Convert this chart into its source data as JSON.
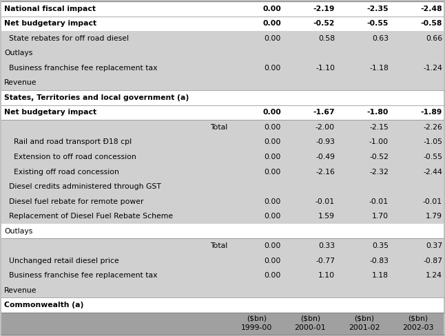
{
  "fig_bg": "#c0c0c0",
  "table_bg": "#ffffff",
  "light_gray": "#d0d0d0",
  "header_gray": "#a0a0a0",
  "font_size": 7.8,
  "rows": [
    {
      "text": "Commonwealth (a)",
      "indent": 0,
      "type": "section_header",
      "values": [
        null,
        null,
        null,
        null
      ],
      "bold": true,
      "bg": "white"
    },
    {
      "text": "Revenue",
      "indent": 0,
      "type": "subsection_header",
      "values": [
        null,
        null,
        null,
        null
      ],
      "bold": false,
      "bg": "light_gray"
    },
    {
      "text": "  Business franchise fee replacement tax",
      "indent": 0,
      "type": "data",
      "values": [
        "0.00",
        "1.10",
        "1.18",
        "1.24"
      ],
      "bold": false,
      "bg": "light_gray"
    },
    {
      "text": "  Unchanged retail diesel price",
      "indent": 0,
      "type": "data",
      "values": [
        "0.00",
        "-0.77",
        "-0.83",
        "-0.87"
      ],
      "bold": false,
      "bg": "light_gray"
    },
    {
      "text": "Total",
      "indent": 0,
      "type": "total",
      "values": [
        "0.00",
        "0.33",
        "0.35",
        "0.37"
      ],
      "bold": false,
      "bg": "light_gray"
    },
    {
      "text": "Outlays",
      "indent": 0,
      "type": "subsection_header",
      "values": [
        null,
        null,
        null,
        null
      ],
      "bold": false,
      "bg": "white"
    },
    {
      "text": "  Replacement of Diesel Fuel Rebate Scheme",
      "indent": 0,
      "type": "data",
      "values": [
        "0.00",
        "1.59",
        "1.70",
        "1.79"
      ],
      "bold": false,
      "bg": "light_gray"
    },
    {
      "text": "  Diesel fuel rebate for remote power",
      "indent": 0,
      "type": "data",
      "values": [
        "0.00",
        "-0.01",
        "-0.01",
        "-0.01"
      ],
      "bold": false,
      "bg": "light_gray"
    },
    {
      "text": "  Diesel credits administered through GST",
      "indent": 0,
      "type": "data",
      "values": [
        null,
        null,
        null,
        null
      ],
      "bold": false,
      "bg": "light_gray"
    },
    {
      "text": "    Existing off road concession",
      "indent": 0,
      "type": "data",
      "values": [
        "0.00",
        "-2.16",
        "-2.32",
        "-2.44"
      ],
      "bold": false,
      "bg": "light_gray"
    },
    {
      "text": "    Extension to off road concession",
      "indent": 0,
      "type": "data",
      "values": [
        "0.00",
        "-0.49",
        "-0.52",
        "-0.55"
      ],
      "bold": false,
      "bg": "light_gray"
    },
    {
      "text": "    Rail and road transport Ð18 cpl",
      "indent": 0,
      "type": "data",
      "values": [
        "0.00",
        "-0.93",
        "-1.00",
        "-1.05"
      ],
      "bold": false,
      "bg": "light_gray"
    },
    {
      "text": "Total",
      "indent": 0,
      "type": "total",
      "values": [
        "0.00",
        "-2.00",
        "-2.15",
        "-2.26"
      ],
      "bold": false,
      "bg": "light_gray"
    },
    {
      "text": "Net budgetary impact",
      "indent": 0,
      "type": "bold_total",
      "values": [
        "0.00",
        "-1.67",
        "-1.80",
        "-1.89"
      ],
      "bold": true,
      "bg": "white"
    },
    {
      "text": "States, Territories and local government (a)",
      "indent": 0,
      "type": "section_header",
      "values": [
        null,
        null,
        null,
        null
      ],
      "bold": true,
      "bg": "white"
    },
    {
      "text": "Revenue",
      "indent": 0,
      "type": "subsection_header",
      "values": [
        null,
        null,
        null,
        null
      ],
      "bold": false,
      "bg": "light_gray"
    },
    {
      "text": "  Business franchise fee replacement tax",
      "indent": 0,
      "type": "data",
      "values": [
        "0.00",
        "-1.10",
        "-1.18",
        "-1.24"
      ],
      "bold": false,
      "bg": "light_gray"
    },
    {
      "text": "Outlays",
      "indent": 0,
      "type": "subsection_header",
      "values": [
        null,
        null,
        null,
        null
      ],
      "bold": false,
      "bg": "light_gray"
    },
    {
      "text": "  State rebates for off road diesel",
      "indent": 0,
      "type": "data",
      "values": [
        "0.00",
        "0.58",
        "0.63",
        "0.66"
      ],
      "bold": false,
      "bg": "light_gray"
    },
    {
      "text": "Net budgetary impact",
      "indent": 0,
      "type": "bold_total",
      "values": [
        "0.00",
        "-0.52",
        "-0.55",
        "-0.58"
      ],
      "bold": true,
      "bg": "white"
    },
    {
      "text": "National fiscal impact",
      "indent": 0,
      "type": "bold_total",
      "values": [
        "0.00",
        "-2.19",
        "-2.35",
        "-2.48"
      ],
      "bold": true,
      "bg": "white"
    }
  ],
  "col_headers_line1": [
    "",
    "",
    "1999-00",
    "2000-01",
    "2001-02",
    "2002-03"
  ],
  "col_headers_line2": [
    "",
    "",
    "($bn)",
    "($bn)",
    "($bn)",
    "($bn)"
  ]
}
